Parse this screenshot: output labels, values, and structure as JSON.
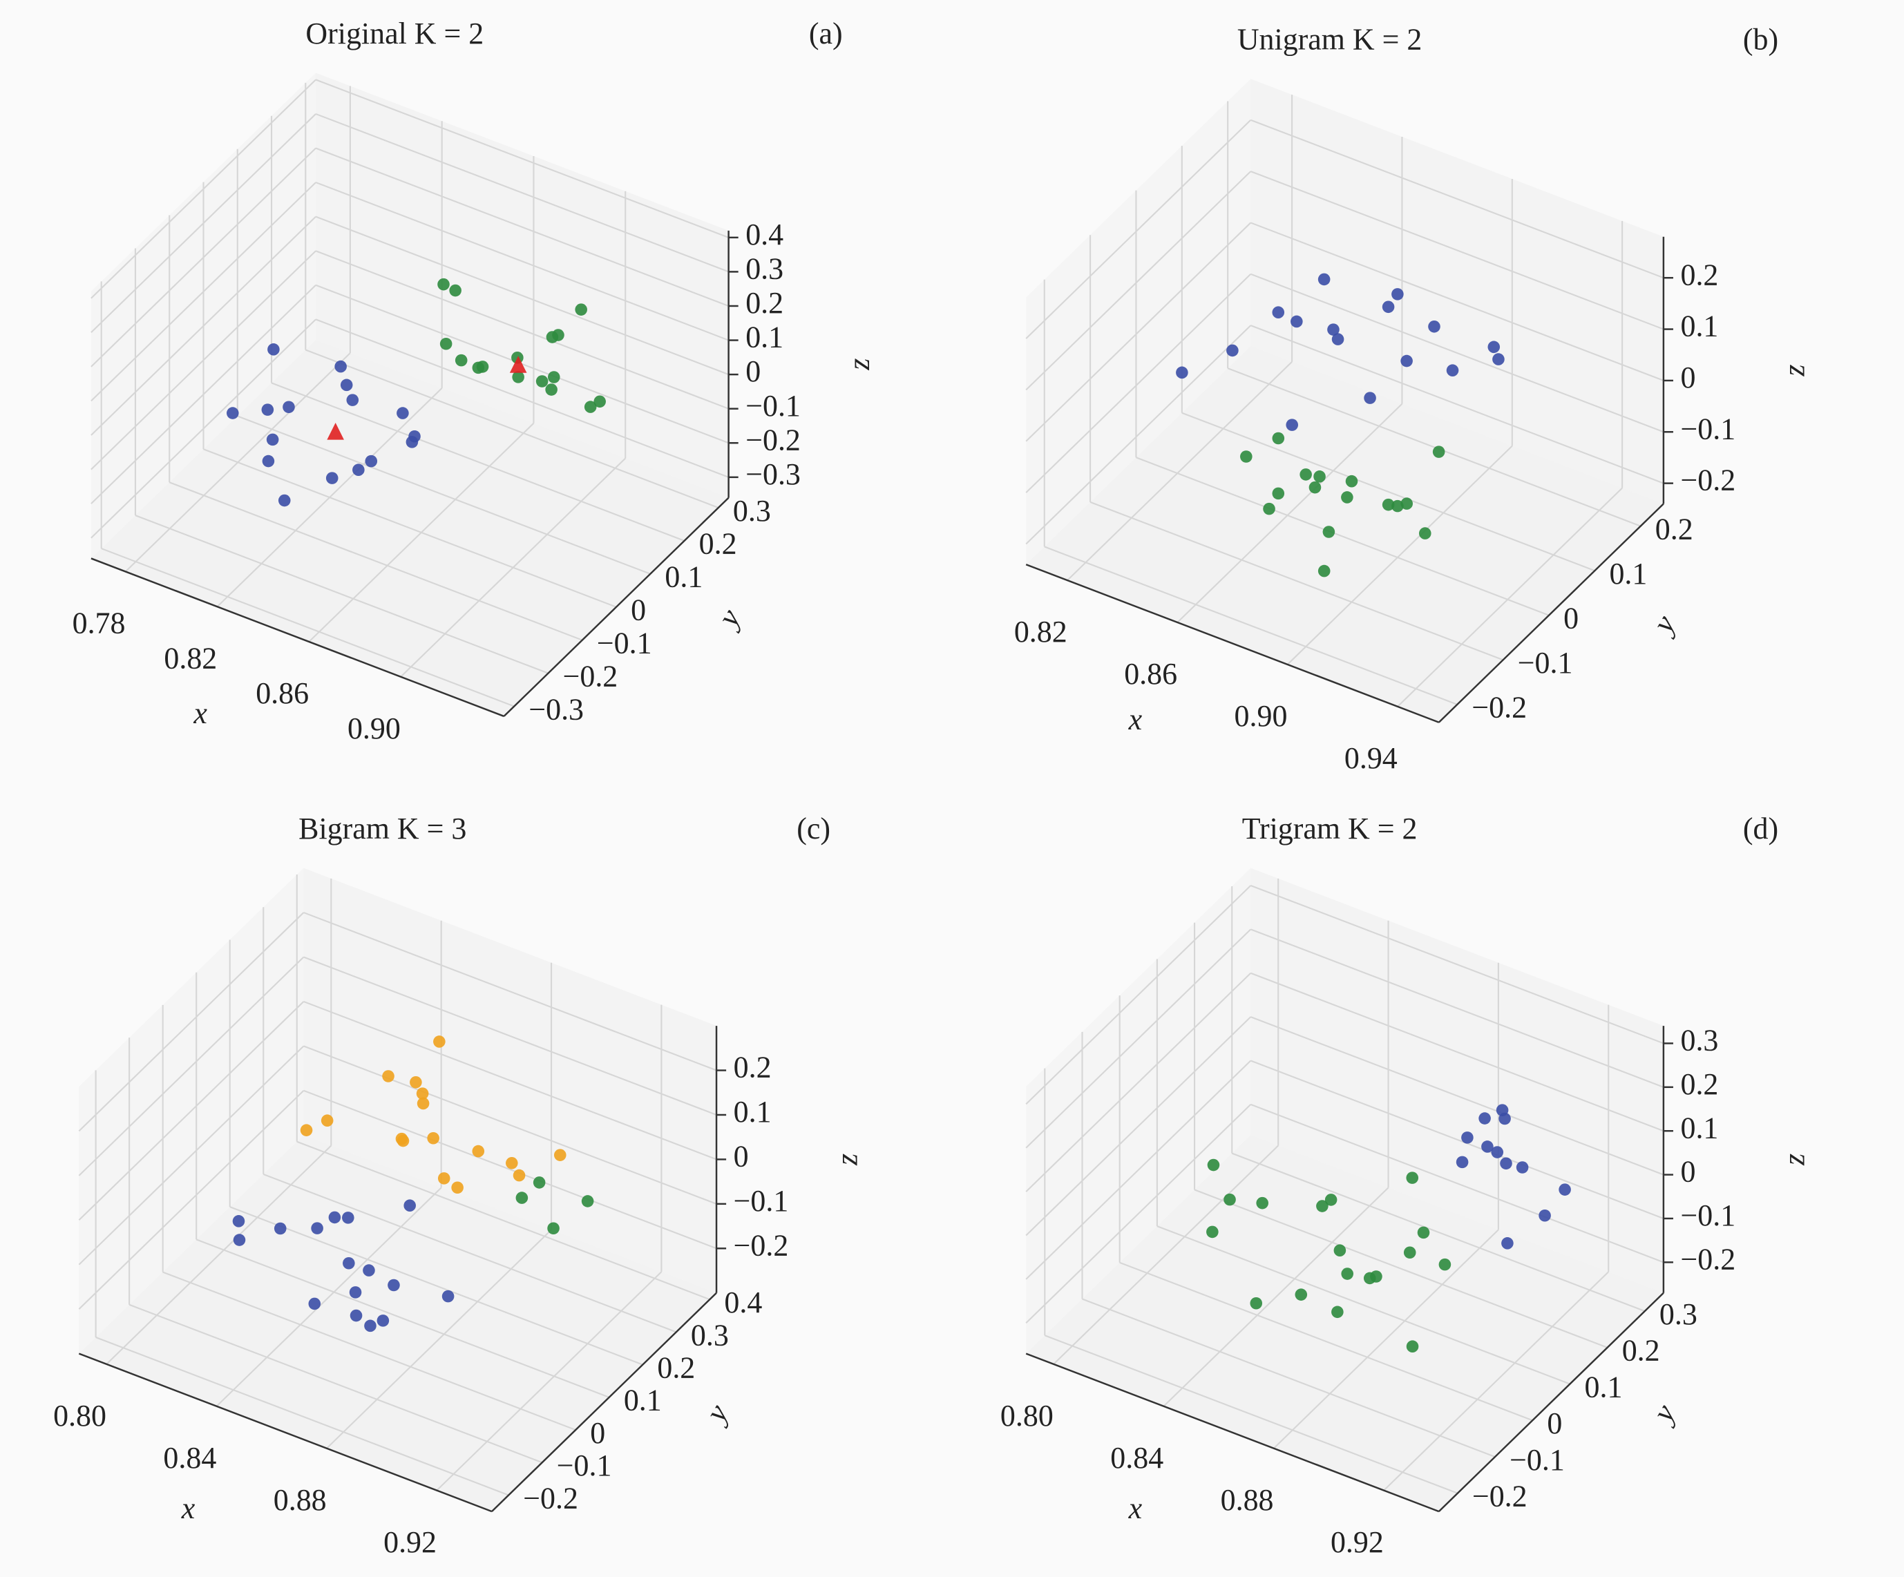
{
  "chart_data": [
    {
      "type": "scatter3d",
      "title": "Original K = 2",
      "panel_label": "(a)",
      "xlabel": "x",
      "ylabel": "y",
      "zlabel": "z",
      "xlim": [
        0.765,
        0.945
      ],
      "ylim": [
        -0.33,
        0.33
      ],
      "zlim": [
        -0.36,
        0.42
      ],
      "xticks": [
        0.78,
        0.82,
        0.86,
        {
          "value": 0.9,
          "label": "0.90"
        }
      ],
      "yticks": [
        {
          "value": -0.3,
          "label": "−0.3"
        },
        {
          "value": -0.2,
          "label": "−0.2"
        },
        {
          "value": -0.1,
          "label": "−0.1"
        },
        0,
        0.1,
        0.2,
        0.3
      ],
      "zticks": [
        {
          "value": -0.3,
          "label": "−0.3"
        },
        {
          "value": -0.2,
          "label": "−0.2"
        },
        {
          "value": -0.1,
          "label": "−0.1"
        },
        0,
        0.1,
        0.2,
        0.3,
        0.4
      ],
      "series": [
        {
          "color": "#3b4ea6",
          "marker": "o",
          "x": [
            0.81,
            0.83,
            0.84,
            0.82,
            0.8,
            0.85,
            0.83,
            0.79,
            0.84,
            0.82,
            0.86,
            0.81,
            0.83,
            0.85,
            0.8,
            0.82
          ],
          "y": [
            -0.1,
            0.0,
            -0.05,
            0.05,
            -0.15,
            -0.08,
            -0.2,
            0.02,
            0.08,
            -0.12,
            -0.02,
            0.1,
            -0.06,
            0.04,
            -0.03,
            -0.18
          ],
          "z": [
            -0.12,
            -0.05,
            -0.18,
            -0.08,
            -0.02,
            -0.1,
            -0.15,
            -0.2,
            -0.14,
            0.02,
            -0.06,
            -0.1,
            -0.22,
            -0.16,
            0.05,
            -0.08
          ]
        },
        {
          "color": "#2e8b3e",
          "marker": "o",
          "x": [
            0.87,
            0.88,
            0.89,
            0.86,
            0.9,
            0.88,
            0.87,
            0.91,
            0.89,
            0.85,
            0.88,
            0.9,
            0.86,
            0.89,
            0.84,
            0.92
          ],
          "y": [
            0.1,
            0.15,
            0.2,
            0.18,
            0.12,
            0.25,
            0.05,
            0.16,
            0.08,
            0.14,
            0.22,
            0.2,
            0.1,
            0.18,
            0.2,
            0.12
          ],
          "z": [
            0.05,
            0.0,
            0.1,
            -0.05,
            0.08,
            0.02,
            0.12,
            -0.02,
            0.15,
            0.03,
            -0.08,
            0.2,
            0.25,
            -0.04,
            0.12,
            0.06
          ]
        },
        {
          "color": "#e02020",
          "marker": "^",
          "x": [
            0.83,
            0.88
          ],
          "y": [
            -0.05,
            0.15
          ],
          "z": [
            -0.1,
            0.03
          ]
        }
      ]
    },
    {
      "type": "scatter3d",
      "title": "Unigram K = 2",
      "panel_label": "(b)",
      "xlabel": "x",
      "ylabel": "y",
      "zlabel": "z",
      "xlim": [
        0.805,
        0.955
      ],
      "ylim": [
        -0.24,
        0.25
      ],
      "zlim": [
        -0.24,
        0.28
      ],
      "xticks": [
        0.82,
        0.86,
        {
          "value": 0.9,
          "label": "0.90"
        },
        0.94
      ],
      "yticks": [
        {
          "value": -0.2,
          "label": "−0.2"
        },
        {
          "value": -0.1,
          "label": "−0.1"
        },
        0,
        0.1,
        0.2
      ],
      "zticks": [
        {
          "value": -0.2,
          "label": "−0.2"
        },
        {
          "value": -0.1,
          "label": "−0.1"
        },
        0,
        0.1,
        0.2
      ],
      "series": [
        {
          "color": "#3b4ea6",
          "marker": "o",
          "x": [
            0.87,
            0.88,
            0.89,
            0.86,
            0.9,
            0.88,
            0.85,
            0.91,
            0.89,
            0.87,
            0.84,
            0.92,
            0.88,
            0.86,
            0.9,
            0.83
          ],
          "y": [
            0.05,
            0.1,
            0.0,
            0.08,
            0.12,
            -0.02,
            0.04,
            0.15,
            0.06,
            -0.05,
            0.0,
            0.1,
            0.14,
            0.02,
            0.08,
            -0.05
          ],
          "z": [
            0.08,
            0.12,
            0.05,
            0.15,
            0.02,
            0.18,
            0.1,
            0.06,
            0.2,
            0.0,
            0.04,
            0.1,
            -0.02,
            0.12,
            0.14,
            0.02
          ]
        },
        {
          "color": "#2e8b3e",
          "marker": "o",
          "x": [
            0.89,
            0.88,
            0.9,
            0.87,
            0.91,
            0.89,
            0.86,
            0.92,
            0.88,
            0.9,
            0.87,
            0.85,
            0.91,
            0.89,
            0.88,
            0.9
          ],
          "y": [
            -0.05,
            -0.08,
            0.0,
            -0.1,
            -0.04,
            -0.12,
            -0.02,
            -0.06,
            0.02,
            -0.15,
            -0.08,
            -0.03,
            0.03,
            -0.1,
            -0.05,
            -0.02
          ],
          "z": [
            -0.1,
            -0.05,
            -0.14,
            -0.12,
            -0.08,
            -0.02,
            -0.18,
            -0.1,
            -0.15,
            -0.06,
            0.0,
            -0.12,
            -0.04,
            -0.2,
            -0.08,
            -0.12
          ]
        }
      ]
    },
    {
      "type": "scatter3d",
      "title": "Bigram K = 3",
      "panel_label": "(c)",
      "xlabel": "x",
      "ylabel": "y",
      "zlabel": "z",
      "xlim": [
        0.79,
        0.94
      ],
      "ylim": [
        -0.25,
        0.42
      ],
      "zlim": [
        -0.3,
        0.3
      ],
      "xticks": [
        {
          "value": 0.8,
          "label": "0.80"
        },
        0.84,
        0.88,
        0.92
      ],
      "yticks": [
        {
          "value": -0.2,
          "label": "−0.2"
        },
        {
          "value": -0.1,
          "label": "−0.1"
        },
        0,
        0.1,
        0.2,
        0.3,
        0.4
      ],
      "zticks": [
        {
          "value": -0.2,
          "label": "−0.2"
        },
        {
          "value": -0.1,
          "label": "−0.1"
        },
        0,
        0.1,
        0.2
      ],
      "series": [
        {
          "color": "#2e8b3e",
          "marker": "o",
          "x": [
            0.9,
            0.91,
            0.89,
            0.92
          ],
          "y": [
            0.22,
            0.18,
            0.25,
            0.2
          ],
          "z": [
            0.0,
            -0.05,
            -0.08,
            0.02
          ]
        },
        {
          "color": "#3b4ea6",
          "marker": "o",
          "x": [
            0.86,
            0.85,
            0.87,
            0.84,
            0.88,
            0.86,
            0.83,
            0.89,
            0.85,
            0.87,
            0.82,
            0.88,
            0.86,
            0.84,
            0.87,
            0.85
          ],
          "y": [
            -0.02,
            0.02,
            -0.08,
            0.05,
            -0.05,
            0.0,
            -0.1,
            0.03,
            -0.04,
            0.08,
            -0.02,
            -0.12,
            0.04,
            -0.06,
            0.0,
            0.06
          ],
          "z": [
            -0.1,
            -0.05,
            -0.15,
            -0.12,
            -0.08,
            -0.18,
            -0.06,
            -0.14,
            -0.2,
            -0.02,
            -0.1,
            -0.12,
            -0.16,
            -0.04,
            -0.22,
            -0.08
          ]
        },
        {
          "color": "#f0a21e",
          "marker": "o",
          "x": [
            0.87,
            0.86,
            0.88,
            0.85,
            0.89,
            0.87,
            0.84,
            0.9,
            0.86,
            0.88,
            0.83,
            0.91,
            0.87,
            0.85,
            0.89,
            0.86
          ],
          "y": [
            0.15,
            0.2,
            0.1,
            0.18,
            0.22,
            0.12,
            0.08,
            0.16,
            0.25,
            0.14,
            0.1,
            0.2,
            0.06,
            0.22,
            0.12,
            0.18
          ],
          "z": [
            0.08,
            0.12,
            0.05,
            0.15,
            0.02,
            0.18,
            0.1,
            0.06,
            0.2,
            0.0,
            0.04,
            0.1,
            0.14,
            -0.02,
            0.12,
            0.16
          ]
        }
      ]
    },
    {
      "type": "scatter3d",
      "title": "Trigram K = 2",
      "panel_label": "(d)",
      "xlabel": "x",
      "ylabel": "y",
      "zlabel": "z",
      "xlim": [
        0.79,
        0.94
      ],
      "ylim": [
        -0.25,
        0.35
      ],
      "zlim": [
        -0.27,
        0.34
      ],
      "xticks": [
        {
          "value": 0.8,
          "label": "0.80"
        },
        0.84,
        0.88,
        0.92
      ],
      "yticks": [
        {
          "value": -0.2,
          "label": "−0.2"
        },
        {
          "value": -0.1,
          "label": "−0.1"
        },
        0,
        0.1,
        0.2,
        0.3
      ],
      "zticks": [
        {
          "value": -0.2,
          "label": "−0.2"
        },
        {
          "value": -0.1,
          "label": "−0.1"
        },
        0,
        0.1,
        0.2,
        0.3
      ],
      "series": [
        {
          "color": "#3b4ea6",
          "marker": "o",
          "x": [
            0.91,
            0.9,
            0.92,
            0.89,
            0.91,
            0.93,
            0.9,
            0.92,
            0.91,
            0.89,
            0.92,
            0.9
          ],
          "y": [
            0.15,
            0.2,
            0.12,
            0.18,
            0.1,
            0.16,
            0.22,
            0.08,
            0.14,
            0.24,
            0.18,
            0.12
          ],
          "z": [
            0.12,
            0.08,
            0.16,
            0.05,
            0.2,
            0.1,
            0.14,
            0.02,
            0.25,
            0.1,
            0.0,
            0.18
          ]
        },
        {
          "color": "#2e8b3e",
          "marker": "o",
          "x": [
            0.87,
            0.86,
            0.88,
            0.85,
            0.89,
            0.87,
            0.84,
            0.9,
            0.86,
            0.88,
            0.83,
            0.91,
            0.87,
            0.85,
            0.89,
            0.86,
            0.82,
            0.88
          ],
          "y": [
            0.0,
            0.05,
            -0.08,
            0.1,
            -0.05,
            0.02,
            -0.12,
            0.06,
            -0.03,
            0.12,
            0.0,
            -0.1,
            0.08,
            -0.06,
            0.04,
            -0.15,
            0.03,
            0.15
          ],
          "z": [
            -0.05,
            0.0,
            -0.1,
            -0.08,
            -0.02,
            -0.12,
            0.02,
            -0.06,
            -0.15,
            0.04,
            -0.03,
            -0.09,
            -0.18,
            0.06,
            -0.04,
            -0.07,
            0.0,
            -0.11
          ]
        }
      ]
    }
  ]
}
